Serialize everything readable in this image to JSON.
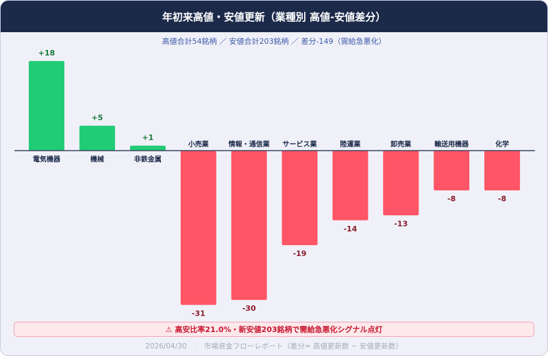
{
  "title": "年初来高値・安値更新（業種別 高値-安値差分）",
  "subtitle": "高値合計54銘柄 ／ 安値合計203銘柄 ／ 差分-149（需給急悪化）",
  "alert": {
    "icon": "warning-icon",
    "text": "高安比率21.0%・新安値203銘柄で需給急悪化シグナル点灯"
  },
  "footer": {
    "date": "2026/04/30",
    "sep": "｜",
    "text": "市場資金フローレポート（差分= 高値更新数 − 安値更新数）"
  },
  "colors": {
    "positive": "#22cc77",
    "negative": "#ff5566",
    "positive_label": "#1a7a3a",
    "negative_label": "#8a1a2a",
    "header": "#1c2a4a"
  },
  "chart_data": {
    "type": "bar",
    "categories": [
      "電気機器",
      "機械",
      "非鉄金属",
      "小売業",
      "情報・通信業",
      "サービス業",
      "陸運業",
      "卸売業",
      "輸送用機器",
      "化学"
    ],
    "values": [
      18,
      5,
      1,
      -31,
      -30,
      -19,
      -14,
      -13,
      -8,
      -8
    ],
    "data_labels": [
      "+18",
      "+5",
      "+1",
      "-31",
      "-30",
      "-19",
      "-14",
      "-13",
      "-8",
      "-8"
    ],
    "grid": false
  }
}
